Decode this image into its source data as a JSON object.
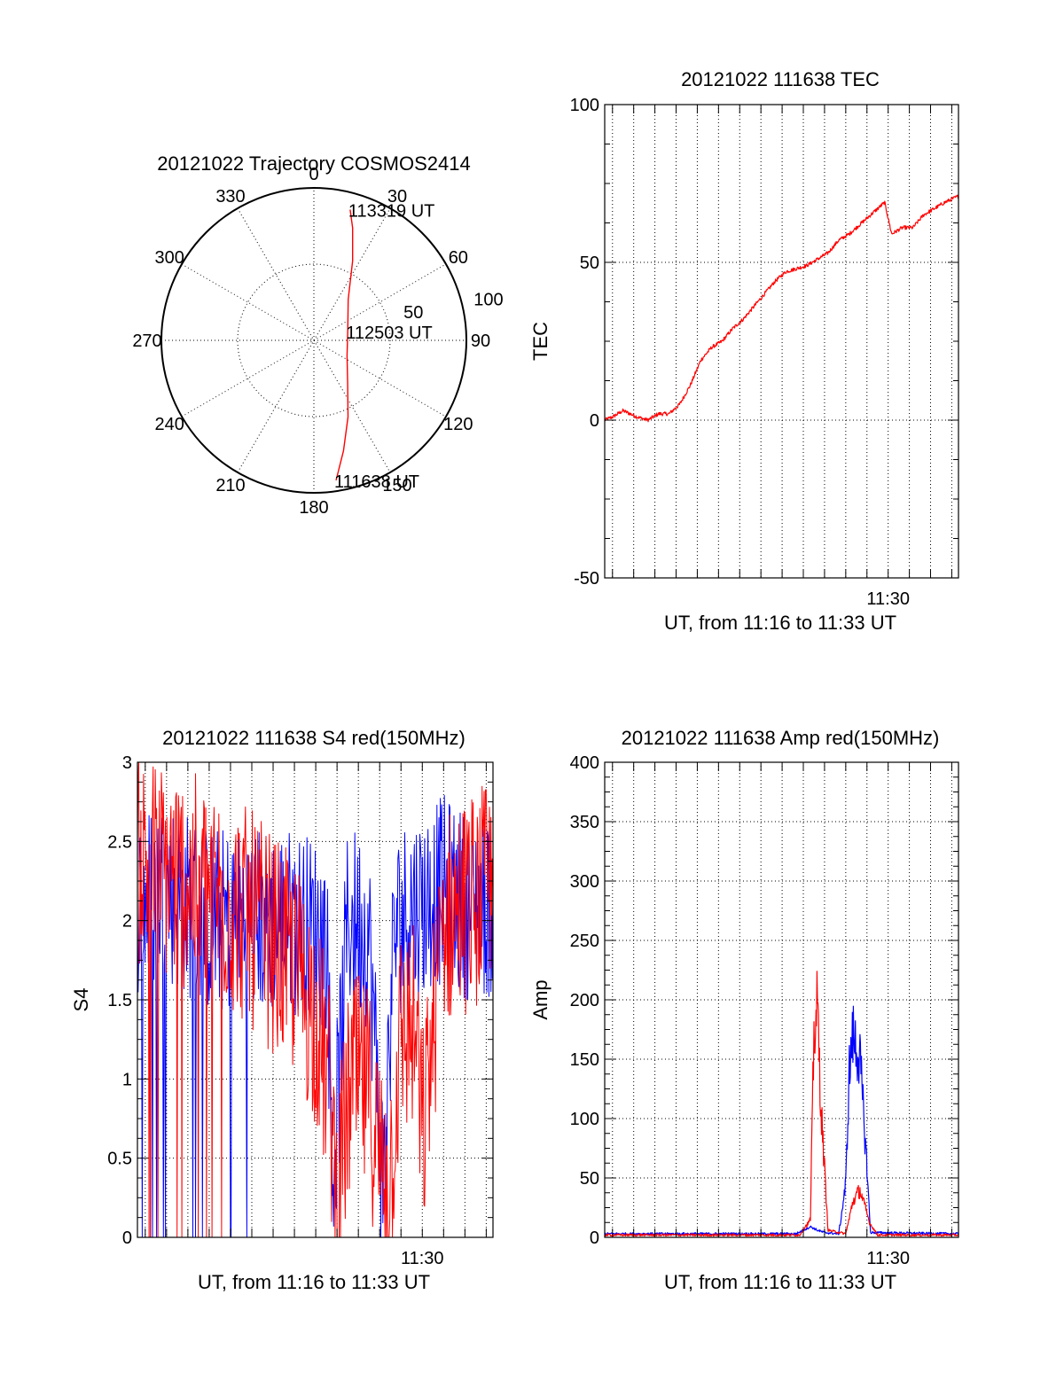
{
  "chart_data": [
    {
      "type": "polar",
      "title": "20121022 Trajectory COSMOS2414",
      "azimuth_labels": [
        "0",
        "30",
        "60",
        "90",
        "120",
        "150",
        "180",
        "210",
        "240",
        "270",
        "300",
        "330"
      ],
      "radial_labels": [
        "50",
        "100"
      ],
      "rlim": [
        0,
        100
      ],
      "series": [
        {
          "color": "#ff0000",
          "points": [
            {
              "az": 171,
              "r": 93
            },
            {
              "az": 165,
              "r": 75
            },
            {
              "az": 156,
              "r": 55
            },
            {
              "az": 142,
              "r": 36
            },
            {
              "az": 115,
              "r": 24
            },
            {
              "az": 75,
              "r": 23
            },
            {
              "az": 40,
              "r": 35
            },
            {
              "az": 26,
              "r": 58
            },
            {
              "az": 19,
              "r": 78
            },
            {
              "az": 15.5,
              "r": 89
            }
          ]
        }
      ],
      "annotations": [
        {
          "text": "113319 UT",
          "az": 15.5,
          "r": 89
        },
        {
          "text": "112503 UT",
          "az": 75,
          "r": 23
        },
        {
          "text": "111638 UT",
          "az": 171,
          "r": 93
        }
      ]
    },
    {
      "type": "line",
      "title": "20121022 111638 TEC",
      "xlabel": "UT, from 11:16 to 11:33 UT",
      "ylabel": "TEC",
      "xlim": [
        "11:16:38",
        "11:33:19"
      ],
      "ylim": [
        -50,
        100
      ],
      "yticks": [
        "-50",
        "0",
        "50",
        "100"
      ],
      "xticks": [
        {
          "label": "11:30",
          "t": "11:30:00"
        }
      ],
      "grid": true,
      "series": [
        {
          "color": "#ff0000",
          "x": [
            "11:16:38",
            "11:17:00",
            "11:17:30",
            "11:18:10",
            "11:18:40",
            "11:19:10",
            "11:19:40",
            "11:20:10",
            "11:20:40",
            "11:21:10",
            "11:21:40",
            "11:22:10",
            "11:22:40",
            "11:23:10",
            "11:23:40",
            "11:24:10",
            "11:24:40",
            "11:25:10",
            "11:25:40",
            "11:26:10",
            "11:26:40",
            "11:27:10",
            "11:27:40",
            "11:28:10",
            "11:28:40",
            "11:29:10",
            "11:29:40",
            "11:29:50",
            "11:30:10",
            "11:30:40",
            "11:31:10",
            "11:31:40",
            "11:32:10",
            "11:32:40",
            "11:33:19"
          ],
          "y": [
            0,
            1,
            3,
            1,
            0,
            2,
            2,
            5,
            11,
            19,
            23,
            25,
            29,
            32,
            36,
            40,
            44,
            47,
            48,
            49,
            51,
            53,
            57,
            59,
            62,
            65,
            68,
            69,
            59,
            61,
            61,
            65,
            67,
            69,
            71
          ]
        }
      ]
    },
    {
      "type": "line",
      "title": "20121022 111638 S4 red(150MHz)",
      "xlabel": "UT, from 11:16 to 11:33 UT",
      "ylabel": "S4",
      "xlim": [
        "11:16:38",
        "11:33:19"
      ],
      "ylim": [
        0,
        3
      ],
      "yticks": [
        "0",
        "0.5",
        "1",
        "1.5",
        "2",
        "2.5",
        "3"
      ],
      "xticks": [
        {
          "label": "11:30",
          "t": "11:30:00"
        }
      ],
      "grid": true,
      "series": [
        {
          "color": "#0000ff",
          "noise": 1.2,
          "x": [
            "11:16:38",
            "11:18:00",
            "11:20:00",
            "11:22:00",
            "11:24:00",
            "11:25:30",
            "11:25:50",
            "11:26:30",
            "11:27:00",
            "11:27:30",
            "11:28:10",
            "11:28:40",
            "11:29:20",
            "11:30:00",
            "11:31:00",
            "11:32:00",
            "11:33:19"
          ],
          "y": [
            2.1,
            2.2,
            2.0,
            2.0,
            2.0,
            1.9,
            0.4,
            2.0,
            2.0,
            1.9,
            0.3,
            1.9,
            2.1,
            2.1,
            2.2,
            2.1,
            2.1
          ]
        },
        {
          "color": "#ff0000",
          "noise": 1.4,
          "x": [
            "11:16:38",
            "11:18:00",
            "11:20:00",
            "11:22:00",
            "11:24:00",
            "11:25:00",
            "11:25:40",
            "11:26:00",
            "11:26:40",
            "11:27:30",
            "11:28:00",
            "11:28:30",
            "11:29:00",
            "11:29:40",
            "11:30:00",
            "11:31:00",
            "11:32:00",
            "11:33:19"
          ],
          "y": [
            2.4,
            2.3,
            2.2,
            2.0,
            1.7,
            1.4,
            0.9,
            0.2,
            1.0,
            0.9,
            0.5,
            0.4,
            1.3,
            1.3,
            0.6,
            2.0,
            2.1,
            2.2
          ]
        }
      ]
    },
    {
      "type": "line",
      "title": "20121022 111638 Amp red(150MHz)",
      "xlabel": "UT, from 11:16 to 11:33 UT",
      "ylabel": "Amp",
      "xlim": [
        "11:16:38",
        "11:33:19"
      ],
      "ylim": [
        0,
        400
      ],
      "yticks": [
        "0",
        "50",
        "100",
        "150",
        "200",
        "250",
        "300",
        "350",
        "400"
      ],
      "xticks": [
        {
          "label": "11:30",
          "t": "11:30:00"
        }
      ],
      "grid": true,
      "series": [
        {
          "color": "#0000ff",
          "x": [
            "11:16:38",
            "11:20:00",
            "11:25:40",
            "11:26:20",
            "11:26:40",
            "11:27:00",
            "11:27:40",
            "11:28:00",
            "11:28:10",
            "11:28:20",
            "11:28:40",
            "11:29:00",
            "11:29:10",
            "11:33:19"
          ],
          "y": [
            2,
            2,
            2,
            8,
            5,
            3,
            2,
            45,
            140,
            170,
            150,
            60,
            3,
            2
          ]
        },
        {
          "color": "#ff0000",
          "x": [
            "11:16:38",
            "11:25:50",
            "11:26:20",
            "11:26:30",
            "11:26:40",
            "11:26:50",
            "11:27:10",
            "11:28:00",
            "11:28:20",
            "11:28:40",
            "11:29:10",
            "11:29:30",
            "11:33:19"
          ],
          "y": [
            1,
            1,
            15,
            170,
            195,
            110,
            5,
            2,
            30,
            40,
            10,
            1,
            1
          ]
        }
      ]
    }
  ]
}
